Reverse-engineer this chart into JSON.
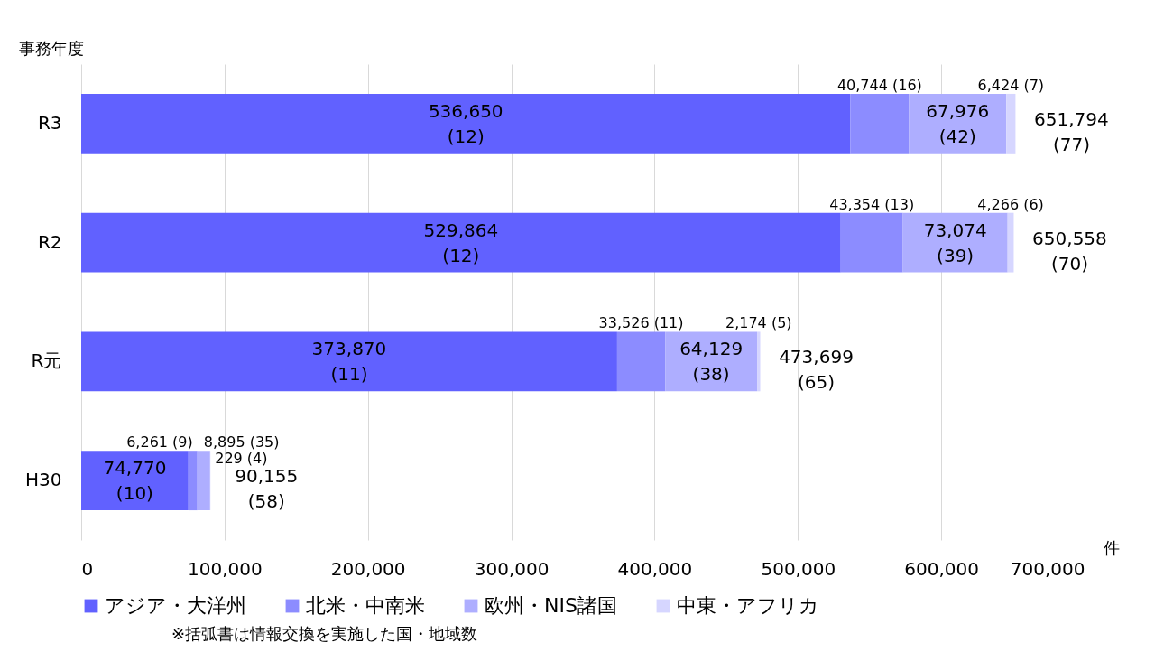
{
  "chart_data": {
    "type": "bar",
    "orientation": "horizontal",
    "stacked": true,
    "ylabel": "事務年度",
    "xlabel": "件",
    "categories": [
      "R3",
      "R2",
      "R元",
      "H30"
    ],
    "series": [
      {
        "name": "アジア・大洋州",
        "color": "#6161ff",
        "values": [
          536650,
          529864,
          373870,
          74770
        ],
        "value_labels": [
          "536,650 (12)",
          "529,864 (12)",
          "373,870 (11)",
          "74,770 (10)"
        ]
      },
      {
        "name": "北米・中南米",
        "color": "#8c8cff",
        "values": [
          40744,
          43354,
          33526,
          6261
        ],
        "value_labels": [
          "40,744 (16)",
          "43,354 (13)",
          "33,526 (11)",
          "6,261 (9)"
        ]
      },
      {
        "name": "欧州・NIS諸国",
        "color": "#aeaeff",
        "values": [
          67976,
          73074,
          64129,
          8895
        ],
        "value_labels": [
          "67,976 (42)",
          "73,074 (39)",
          "64,129 (38)",
          "8,895 (35)"
        ]
      },
      {
        "name": "中東・アフリカ",
        "color": "#d6d6ff",
        "values": [
          6424,
          4266,
          2174,
          229
        ],
        "value_labels": [
          "6,424 (7)",
          "4,266 (6)",
          "2,174 (5)",
          "229 (4)"
        ]
      }
    ],
    "totals": [
      "651,794 (77)",
      "650,558 (70)",
      "473,699 (65)",
      "90,155 (58)"
    ],
    "xlim": [
      0,
      700000
    ],
    "xticks": [
      0,
      {
        "value": 100000,
        "label": "100,000"
      },
      {
        "value": 200000,
        "label": "200,000"
      },
      {
        "value": 300000,
        "label": "300,000"
      },
      {
        "value": 400000,
        "label": "400,000"
      },
      {
        "value": 500000,
        "label": "500,000"
      },
      {
        "value": 600000,
        "label": "600,000"
      },
      {
        "value": 700000,
        "label": "700,000"
      }
    ],
    "grid": "x",
    "legend": "bottom",
    "annotations": [
      "※括弧書は情報交換を実施した国・地域数"
    ]
  }
}
